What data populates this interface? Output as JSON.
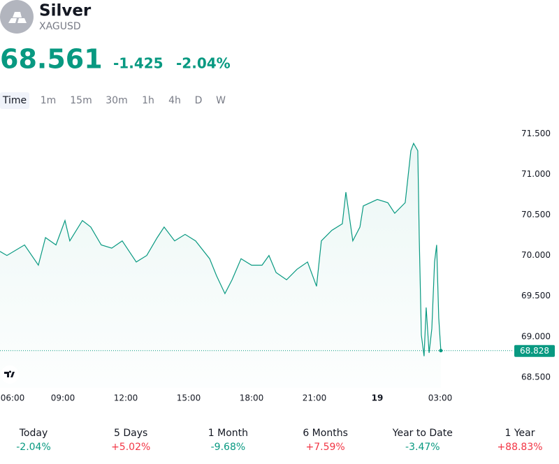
{
  "header": {
    "title": "Silver",
    "symbol": "XAGUSD",
    "price": "68.561",
    "change": "-1.425",
    "change_pct": "-2.04%",
    "color": "#089981"
  },
  "tabs": [
    "Time",
    "1m",
    "15m",
    "30m",
    "1h",
    "4h",
    "D",
    "W"
  ],
  "chart_data": {
    "type": "line",
    "x": [
      6,
      6.33,
      7.17,
      7.83,
      8.17,
      8.67,
      9.1,
      9.33,
      9.93,
      10.33,
      10.83,
      11.33,
      11.83,
      12.5,
      13,
      13.5,
      13.83,
      14.33,
      14.83,
      15.33,
      16,
      16.33,
      16.73,
      17.07,
      17.5,
      18,
      18.5,
      18.83,
      19.17,
      19.67,
      20.17,
      20.67,
      21.1,
      21.33,
      21.83,
      22.33,
      22.5,
      22.83,
      23.17,
      23.33,
      24,
      24.5,
      24.83,
      25.33,
      25.6,
      25.73,
      25.93,
      26,
      26.1,
      26.23,
      26.33,
      26.47,
      26.6,
      26.73,
      26.83,
      26.93,
      27.03
    ],
    "series": [
      {
        "color": "#089981",
        "values": [
          70.05,
          70.0,
          70.13,
          69.88,
          70.22,
          70.13,
          70.43,
          70.18,
          70.43,
          70.35,
          70.13,
          70.09,
          70.18,
          69.92,
          70.0,
          70.22,
          70.35,
          70.18,
          70.26,
          70.18,
          69.96,
          69.75,
          69.53,
          69.7,
          69.96,
          69.88,
          69.88,
          70.0,
          69.79,
          69.7,
          69.83,
          69.92,
          69.62,
          70.18,
          70.31,
          70.39,
          70.78,
          70.18,
          70.35,
          70.61,
          70.69,
          70.65,
          70.52,
          70.65,
          71.29,
          71.38,
          71.29,
          70.22,
          69.02,
          68.76,
          69.36,
          68.8,
          69.1,
          69.92,
          70.13,
          69.23,
          68.828
        ]
      }
    ],
    "xlim": [
      6,
      30.5
    ],
    "xticks": [
      {
        "value": 6,
        "label": "06:00"
      },
      {
        "value": 9,
        "label": "09:00"
      },
      {
        "value": 12,
        "label": "12:00"
      },
      {
        "value": 15,
        "label": "15:00"
      },
      {
        "value": 18,
        "label": "18:00"
      },
      {
        "value": 21,
        "label": "21:00"
      },
      {
        "value": 24,
        "label": "19"
      },
      {
        "value": 27,
        "label": "03:00"
      }
    ],
    "ylim": [
      68.37,
      71.64
    ],
    "yticks": [
      {
        "value": 68.5,
        "label": "68.500"
      },
      {
        "value": 69,
        "label": "69.000"
      },
      {
        "value": 69.5,
        "label": "69.500"
      },
      {
        "value": 70,
        "label": "70.000"
      },
      {
        "value": 70.5,
        "label": "70.500"
      },
      {
        "value": 71,
        "label": "71.000"
      },
      {
        "value": 71.5,
        "label": "71.500"
      }
    ]
  },
  "performance": [
    {
      "label": "Today",
      "value": "-2.04%",
      "color": "#089981"
    },
    {
      "label": "5 Days",
      "value": "+5.02%",
      "color": "#f23645"
    },
    {
      "label": "1 Month",
      "value": "-9.68%",
      "color": "#089981"
    },
    {
      "label": "6 Months",
      "value": "+7.59%",
      "color": "#f23645"
    },
    {
      "label": "Year to Date",
      "value": "-3.47%",
      "color": "#089981"
    },
    {
      "label": "1 Year",
      "value": "+88.83%",
      "color": "#f23645"
    }
  ]
}
